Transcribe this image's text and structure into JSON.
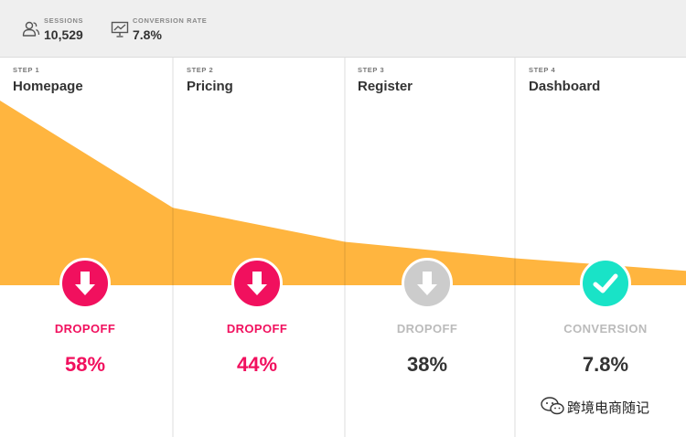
{
  "header": {
    "sessions": {
      "label": "SESSIONS",
      "value": "10,529",
      "icon": "users-icon"
    },
    "conversion_rate": {
      "label": "CONVERSION RATE",
      "value": "7.8%",
      "icon": "presentation-chart-icon"
    }
  },
  "colors": {
    "funnel": "#ffb53f",
    "dropoff_active": "#f1105e",
    "dropoff_inactive": "#cccccc",
    "conversion_badge": "#19e3c7",
    "muted_text": "#bbbbbb",
    "dark_text": "#333333"
  },
  "chart_data": {
    "type": "area",
    "title": "",
    "steps": [
      {
        "step": "STEP 1",
        "name": "Homepage",
        "stat_label": "DROPOFF",
        "stat_value": "58%",
        "state": "dropoff-active",
        "badge_icon": "arrow-down-icon"
      },
      {
        "step": "STEP 2",
        "name": "Pricing",
        "stat_label": "DROPOFF",
        "stat_value": "44%",
        "state": "dropoff-active",
        "badge_icon": "arrow-down-icon"
      },
      {
        "step": "STEP 3",
        "name": "Register",
        "stat_label": "DROPOFF",
        "stat_value": "38%",
        "state": "dropoff-inactive",
        "badge_icon": "arrow-down-icon"
      },
      {
        "step": "STEP 4",
        "name": "Dashboard",
        "stat_label": "CONVERSION",
        "stat_value": "7.8%",
        "state": "conversion",
        "badge_icon": "check-icon"
      }
    ],
    "series": [
      {
        "values": [
          100,
          42,
          23.5,
          14.6,
          7.8
        ]
      }
    ]
  },
  "watermark": {
    "text": "跨境电商随记",
    "icon": "wechat-icon"
  }
}
